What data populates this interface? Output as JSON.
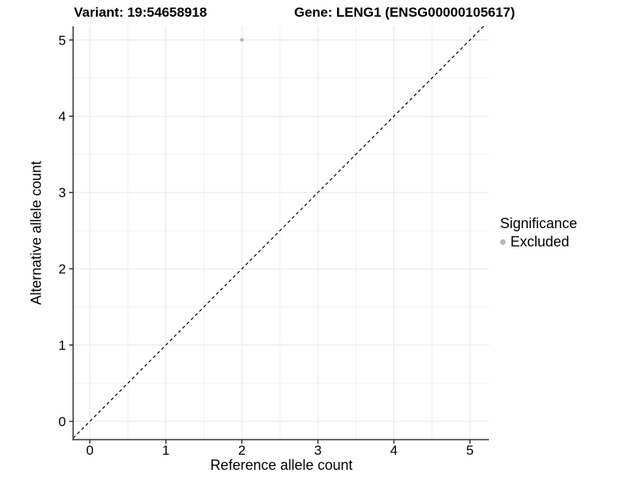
{
  "chart_data": {
    "type": "scatter",
    "title_left": "Variant: 19:54658918",
    "title_right": "Gene: LENG1 (ENSG00000105617)",
    "xlabel": "Reference allele count",
    "ylabel": "Alternative allele count",
    "x_ticks": [
      0,
      1,
      2,
      3,
      4,
      5
    ],
    "y_ticks": [
      0,
      1,
      2,
      3,
      4,
      5
    ],
    "xlim": [
      -0.22,
      5.25
    ],
    "ylim": [
      -0.24,
      5.18
    ],
    "grid": {
      "major": true,
      "minor": true
    },
    "points": [
      {
        "x": 2,
        "y": 5,
        "series": "Excluded"
      }
    ],
    "reference_line": {
      "type": "identity",
      "slope": 1,
      "intercept": 0,
      "style": "dashed",
      "color": "#000000"
    },
    "legend": {
      "title": "Significance",
      "position": "right",
      "entries": [
        {
          "label": "Excluded",
          "color": "#b5b5b5"
        }
      ]
    },
    "colors": {
      "point": "#b5b5b5",
      "grid_major": "#e6e6e6",
      "grid_minor": "#f2f2f2",
      "axis": "#333333",
      "text": "#000000",
      "background": "#ffffff"
    }
  }
}
